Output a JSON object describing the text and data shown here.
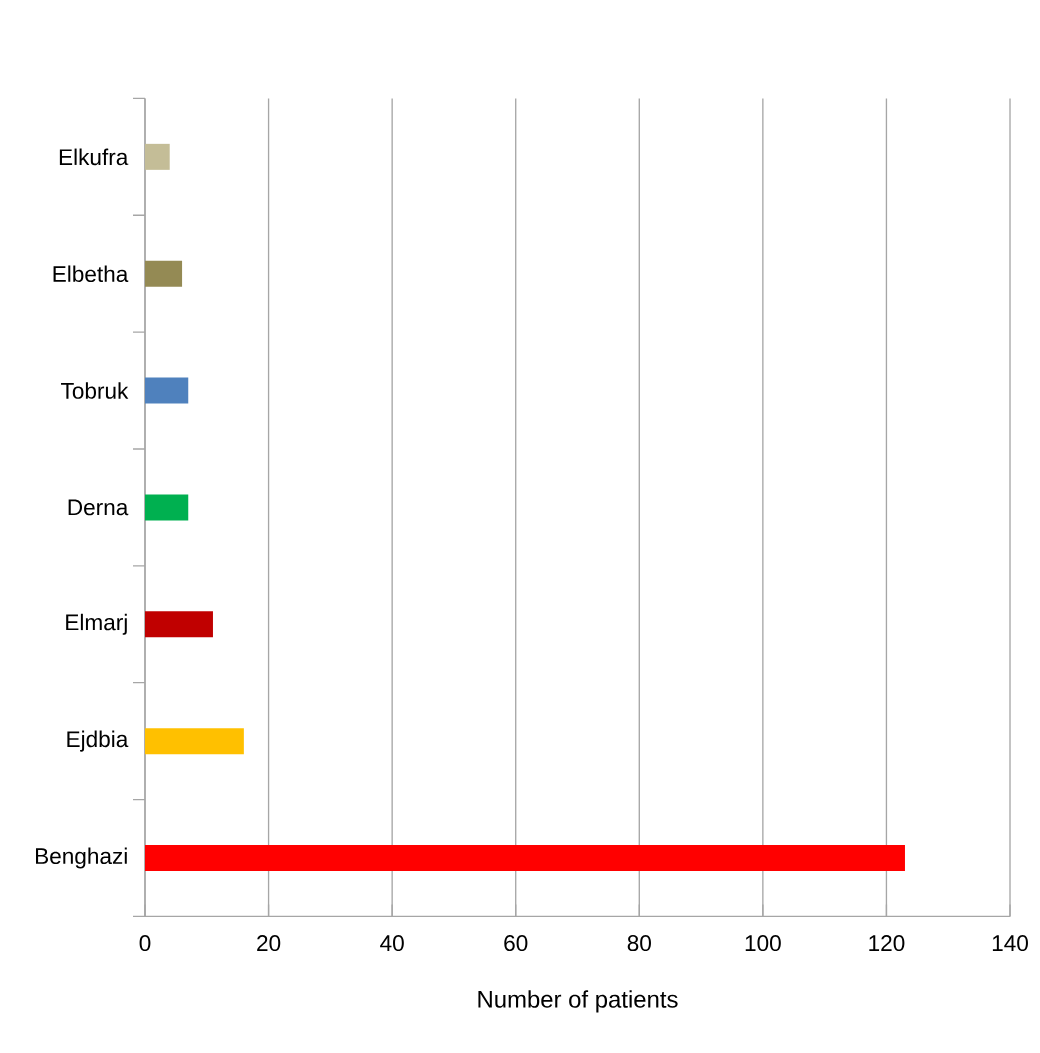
{
  "chart_data": {
    "type": "bar",
    "orientation": "horizontal",
    "xlabel": "Number of patients",
    "categories": [
      "Elkufra",
      "Elbetha",
      "Tobruk",
      "Derna",
      "Elmarj",
      "Ejdbia",
      "Benghazi"
    ],
    "values": [
      4,
      6,
      7,
      7,
      11,
      16,
      123
    ],
    "colors": [
      "#c4bd97",
      "#948a54",
      "#4f81bd",
      "#00b050",
      "#c00000",
      "#ffc000",
      "#ff0000"
    ],
    "xlim": [
      0,
      140
    ],
    "xticks": [
      0,
      20,
      40,
      60,
      80,
      100,
      120,
      140
    ],
    "grid": "x"
  }
}
